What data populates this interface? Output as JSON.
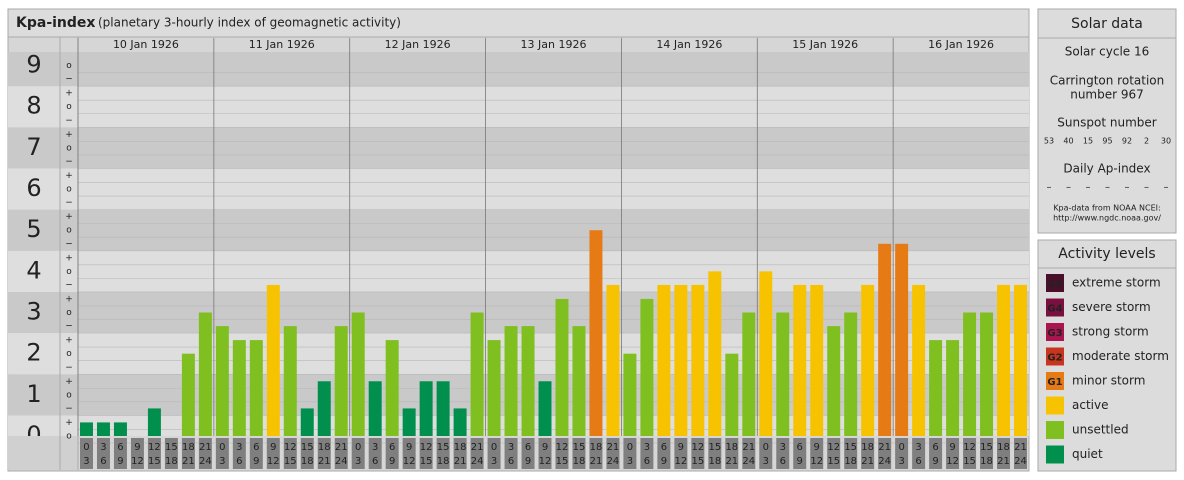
{
  "header": {
    "title": "Kpa-index",
    "subtitle": "(planetary 3-hourly index of geomagnetic activity)"
  },
  "chart_data": {
    "type": "bar",
    "ylim": [
      0,
      9.33
    ],
    "yticks": [
      0,
      1,
      2,
      3,
      4,
      5,
      6,
      7,
      8,
      9
    ],
    "minor_yticks": [
      {
        "value": 9,
        "label": "o"
      },
      {
        "value": 8.67,
        "label": "−"
      },
      {
        "value": 8.33,
        "label": "+"
      },
      {
        "value": 8,
        "label": "o"
      },
      {
        "value": 7.67,
        "label": "−"
      },
      {
        "value": 7.33,
        "label": "+"
      },
      {
        "value": 7,
        "label": "o"
      },
      {
        "value": 6.67,
        "label": "−"
      },
      {
        "value": 6.33,
        "label": "+"
      },
      {
        "value": 6,
        "label": "o"
      },
      {
        "value": 5.67,
        "label": "−"
      },
      {
        "value": 5.33,
        "label": "+"
      },
      {
        "value": 5,
        "label": "o"
      },
      {
        "value": 4.67,
        "label": "−"
      },
      {
        "value": 4.33,
        "label": "+"
      },
      {
        "value": 4,
        "label": "o"
      },
      {
        "value": 3.67,
        "label": "−"
      },
      {
        "value": 3.33,
        "label": "+"
      },
      {
        "value": 3,
        "label": "o"
      },
      {
        "value": 2.67,
        "label": "−"
      },
      {
        "value": 2.33,
        "label": "+"
      },
      {
        "value": 2,
        "label": "o"
      },
      {
        "value": 1.67,
        "label": "−"
      },
      {
        "value": 1.33,
        "label": "+"
      },
      {
        "value": 1,
        "label": "o"
      },
      {
        "value": 0.67,
        "label": "−"
      },
      {
        "value": 0.33,
        "label": "+"
      },
      {
        "value": 0,
        "label": "o"
      }
    ],
    "grid": true,
    "hours": [
      {
        "from": 0,
        "to": 3
      },
      {
        "from": 3,
        "to": 6
      },
      {
        "from": 6,
        "to": 9
      },
      {
        "from": 9,
        "to": 12
      },
      {
        "from": 12,
        "to": 15
      },
      {
        "from": 15,
        "to": 18
      },
      {
        "from": 18,
        "to": 21
      },
      {
        "from": 21,
        "to": 24
      }
    ],
    "days": [
      {
        "label": "10 Jan 1926",
        "values": [
          0.33,
          0.33,
          0.33,
          0,
          0.67,
          0,
          2,
          3
        ],
        "colors": [
          "#008f4c",
          "#008f4c",
          "#008f4c",
          "#008f4c",
          "#008f4c",
          "#008f4c",
          "#7fbf1f",
          "#7fbf1f"
        ]
      },
      {
        "label": "11 Jan 1926",
        "values": [
          2.67,
          2.33,
          2.33,
          3.67,
          2.67,
          0.67,
          1.33,
          2.67
        ],
        "colors": [
          "#7fbf1f",
          "#7fbf1f",
          "#7fbf1f",
          "#f7c300",
          "#7fbf1f",
          "#008f4c",
          "#008f4c",
          "#7fbf1f"
        ]
      },
      {
        "label": "12 Jan 1926",
        "values": [
          3,
          1.33,
          2.33,
          0.67,
          1.33,
          1.33,
          0.67,
          3
        ],
        "colors": [
          "#7fbf1f",
          "#008f4c",
          "#7fbf1f",
          "#008f4c",
          "#008f4c",
          "#008f4c",
          "#008f4c",
          "#7fbf1f"
        ]
      },
      {
        "label": "13 Jan 1926",
        "values": [
          2.33,
          2.67,
          2.67,
          1.33,
          3.33,
          2.67,
          5,
          3.67
        ],
        "colors": [
          "#7fbf1f",
          "#7fbf1f",
          "#7fbf1f",
          "#008f4c",
          "#7fbf1f",
          "#7fbf1f",
          "#e67b16",
          "#f7c300"
        ]
      },
      {
        "label": "14 Jan 1926",
        "values": [
          2,
          3.33,
          3.67,
          3.67,
          3.67,
          4,
          2,
          3
        ],
        "colors": [
          "#7fbf1f",
          "#7fbf1f",
          "#f7c300",
          "#f7c300",
          "#f7c300",
          "#f7c300",
          "#7fbf1f",
          "#7fbf1f"
        ]
      },
      {
        "label": "15 Jan 1926",
        "values": [
          4,
          3,
          3.67,
          3.67,
          2.67,
          3,
          3.67,
          4.67
        ],
        "colors": [
          "#f7c300",
          "#7fbf1f",
          "#f7c300",
          "#f7c300",
          "#7fbf1f",
          "#7fbf1f",
          "#f7c300",
          "#e67b16"
        ]
      },
      {
        "label": "16 Jan 1926",
        "values": [
          4.67,
          3.67,
          2.33,
          2.33,
          3,
          3,
          3.67,
          3.67
        ],
        "colors": [
          "#e67b16",
          "#f7c300",
          "#7fbf1f",
          "#7fbf1f",
          "#7fbf1f",
          "#7fbf1f",
          "#f7c300",
          "#f7c300"
        ]
      }
    ]
  },
  "solar_data": {
    "title": "Solar data",
    "solar_cycle": "Solar cycle 16",
    "carrington": [
      "Carrington rotation",
      "number 967"
    ],
    "sunspot_title": "Sunspot number",
    "sunspot_numbers": [
      53,
      40,
      15,
      95,
      92,
      2,
      30
    ],
    "ap_title": "Daily Ap-index",
    "ap_values": [
      "–",
      "–",
      "–",
      "–",
      "–",
      "–",
      "–"
    ],
    "source": [
      "Kpa-data from NOAA NCEI:",
      "http://www.ngdc.noaa.gov/"
    ]
  },
  "activity_levels": {
    "title": "Activity levels",
    "items": [
      {
        "badge": "G5",
        "label": "extreme storm",
        "color": "#4a0f2a"
      },
      {
        "badge": "G4",
        "label": "severe storm",
        "color": "#7a1040"
      },
      {
        "badge": "G3",
        "label": "strong storm",
        "color": "#a8154f"
      },
      {
        "badge": "G2",
        "label": "moderate storm",
        "color": "#c8351f"
      },
      {
        "badge": "G1",
        "label": "minor storm",
        "color": "#e67b16"
      },
      {
        "label": "active",
        "color": "#f7c300"
      },
      {
        "label": "unsettled",
        "color": "#7fbf1f"
      },
      {
        "label": "quiet",
        "color": "#008f4c"
      }
    ]
  }
}
